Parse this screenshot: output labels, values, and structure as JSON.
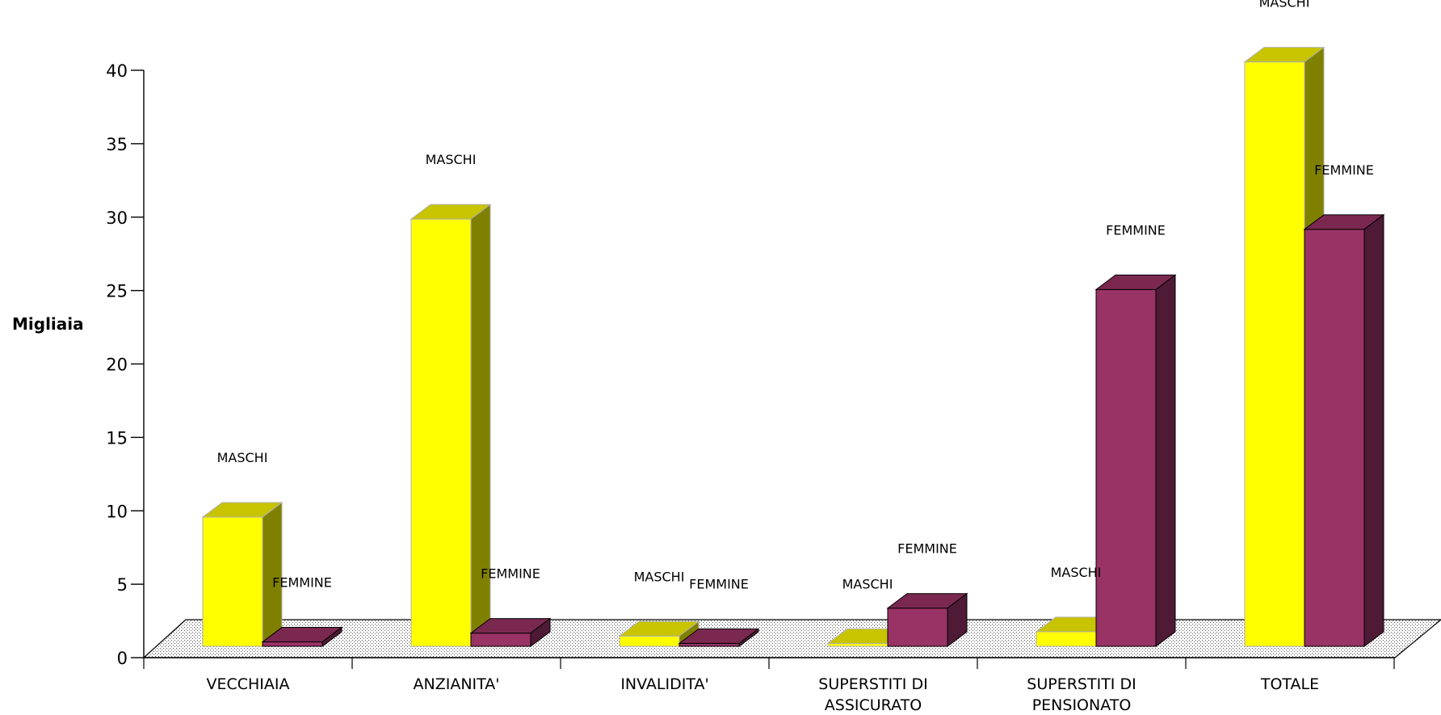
{
  "chart_data": {
    "type": "bar",
    "title": "",
    "xlabel": "",
    "ylabel": "Migliaia",
    "ylim": [
      0,
      40
    ],
    "yticks": [
      0,
      5,
      10,
      15,
      20,
      25,
      30,
      35,
      40
    ],
    "grid": false,
    "style": "3d-clustered",
    "categories": [
      [
        "VECCHIAIA"
      ],
      [
        "ANZIANITA'"
      ],
      [
        "INVALIDITA'"
      ],
      [
        "SUPERSTITI DI",
        "ASSICURATO"
      ],
      [
        "SUPERSTITI DI",
        "PENSIONATO"
      ],
      [
        "TOTALE"
      ]
    ],
    "series": [
      {
        "name": "MASCHI",
        "color": "#ffff00",
        "top_color": "#c8c400",
        "side_color": "#808000",
        "values": [
          8.8,
          29.1,
          0.7,
          0.2,
          1.0,
          39.8
        ]
      },
      {
        "name": "FEMMINE",
        "color": "#993366",
        "top_color": "#7a2850",
        "side_color": "#4f1a35",
        "values": [
          0.3,
          0.9,
          0.2,
          2.6,
          24.3,
          28.4
        ]
      }
    ],
    "bar_labels": [
      [
        "MASCHI",
        "FEMMINE"
      ],
      [
        "MASCHI",
        "FEMMINE"
      ],
      [
        "MASCHI",
        "FEMMINE"
      ],
      [
        "MASCHI",
        "FEMMINE"
      ],
      [
        "MASCHI",
        "FEMMINE"
      ],
      [
        "MASCHI",
        "FEMMINE"
      ]
    ]
  }
}
